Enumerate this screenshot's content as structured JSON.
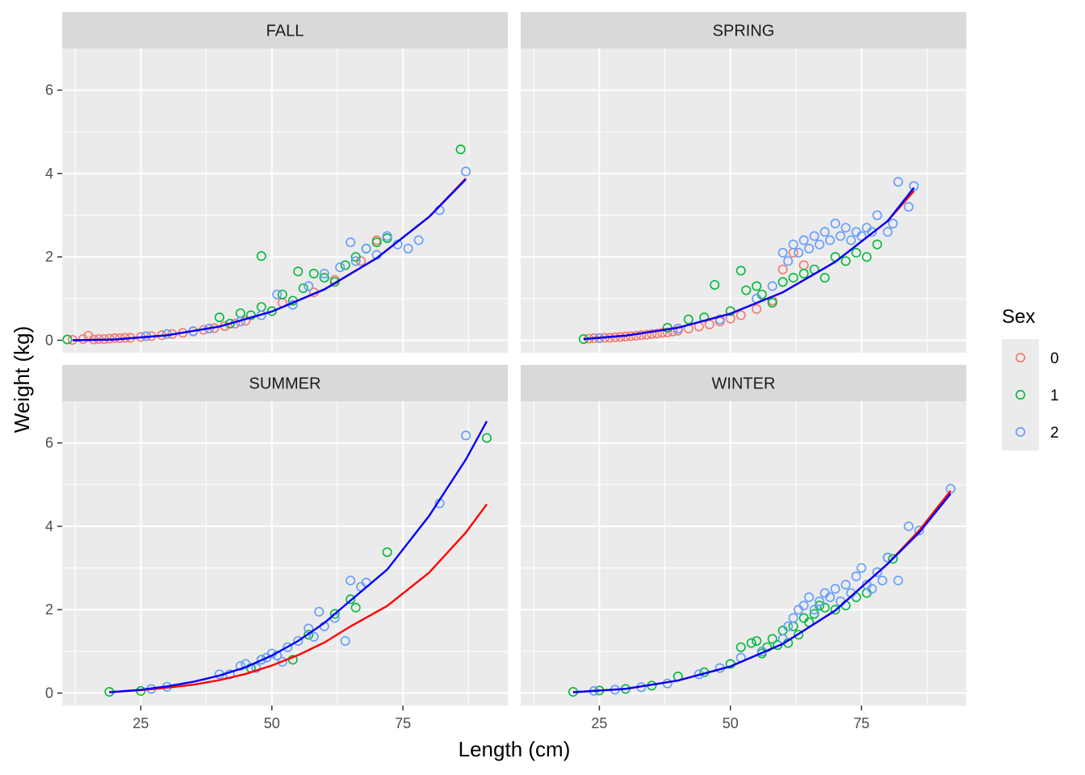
{
  "chart_data": {
    "type": "scatter",
    "layout": "facet_wrap 2x2, shared axes",
    "xlabel": "Length (cm)",
    "ylabel": "Weight (kg)",
    "xlim": [
      10,
      95
    ],
    "ylim": [
      -0.3,
      7
    ],
    "x_ticks": [
      25,
      50,
      75
    ],
    "y_ticks": [
      0,
      2,
      4,
      6
    ],
    "grid": true,
    "legend": {
      "title": "Sex",
      "position": "right",
      "entries": [
        "0",
        "1",
        "2"
      ]
    },
    "colors": {
      "sex_0": "#F8766D",
      "sex_1": "#00BA38",
      "sex_2": "#619CFF",
      "fit_red": "#FF0000",
      "fit_blue": "#0000FF",
      "panel_bg": "#EBEBEB",
      "strip_bg": "#D9D9D9"
    },
    "point_shape": "open-circle",
    "facets": [
      {
        "name": "FALL",
        "curves": [
          {
            "color": "red",
            "x": [
              12,
              20,
              30,
              40,
              50,
              60,
              70,
              80,
              87
            ],
            "y": [
              0.0,
              0.02,
              0.12,
              0.33,
              0.69,
              1.22,
              1.97,
              2.96,
              3.88
            ]
          },
          {
            "color": "blue",
            "x": [
              12,
              20,
              30,
              40,
              50,
              60,
              70,
              80,
              87
            ],
            "y": [
              0.0,
              0.02,
              0.12,
              0.33,
              0.69,
              1.22,
              1.97,
              2.96,
              3.86
            ]
          }
        ],
        "points": [
          {
            "sex": "0",
            "x": [
              12,
              14,
              15,
              16,
              17,
              18,
              19,
              20,
              21,
              22,
              23,
              25,
              27,
              29,
              31,
              33,
              35,
              37,
              39,
              41,
              43,
              45,
              52,
              58,
              62,
              67,
              70
            ],
            "y": [
              0.01,
              0.03,
              0.11,
              0.02,
              0.03,
              0.03,
              0.04,
              0.05,
              0.05,
              0.06,
              0.06,
              0.08,
              0.1,
              0.12,
              0.15,
              0.18,
              0.21,
              0.25,
              0.29,
              0.34,
              0.4,
              0.47,
              0.9,
              1.15,
              1.45,
              1.9,
              2.4
            ]
          },
          {
            "sex": "1",
            "x": [
              11,
              40,
              42,
              44,
              46,
              48,
              48,
              50,
              52,
              54,
              55,
              56,
              58,
              60,
              62,
              64,
              66,
              68,
              70,
              72,
              86
            ],
            "y": [
              0.02,
              0.55,
              0.4,
              0.65,
              0.6,
              2.02,
              0.8,
              0.7,
              1.1,
              0.95,
              1.65,
              1.25,
              1.6,
              1.5,
              1.4,
              1.8,
              2.0,
              2.2,
              2.35,
              2.45,
              4.58
            ]
          },
          {
            "sex": "2",
            "x": [
              26,
              30,
              35,
              38,
              44,
              48,
              51,
              54,
              57,
              60,
              63,
              65,
              66,
              68,
              70,
              72,
              74,
              76,
              78,
              82,
              87
            ],
            "y": [
              0.1,
              0.15,
              0.22,
              0.28,
              0.45,
              0.6,
              1.1,
              0.85,
              1.3,
              1.6,
              1.75,
              2.35,
              1.9,
              2.2,
              2.05,
              2.5,
              2.3,
              2.2,
              2.4,
              3.12,
              4.05
            ]
          }
        ]
      },
      {
        "name": "SPRING",
        "curves": [
          {
            "color": "red",
            "x": [
              22,
              30,
              40,
              50,
              60,
              70,
              80,
              85
            ],
            "y": [
              0.03,
              0.11,
              0.3,
              0.64,
              1.15,
              1.88,
              2.86,
              3.58
            ]
          },
          {
            "color": "blue",
            "x": [
              22,
              30,
              40,
              50,
              60,
              70,
              80,
              85
            ],
            "y": [
              0.03,
              0.11,
              0.3,
              0.64,
              1.15,
              1.88,
              2.86,
              3.66
            ]
          }
        ],
        "points": [
          {
            "sex": "0",
            "x": [
              23,
              24,
              25,
              26,
              27,
              28,
              29,
              30,
              31,
              32,
              33,
              34,
              35,
              36,
              37,
              38,
              39,
              40,
              42,
              44,
              46,
              48,
              50,
              52,
              55,
              58,
              60,
              62,
              64
            ],
            "y": [
              0.04,
              0.05,
              0.05,
              0.06,
              0.06,
              0.07,
              0.08,
              0.09,
              0.1,
              0.11,
              0.12,
              0.13,
              0.15,
              0.16,
              0.18,
              0.19,
              0.21,
              0.23,
              0.28,
              0.33,
              0.38,
              0.45,
              0.52,
              0.6,
              0.75,
              0.95,
              1.7,
              2.1,
              1.8
            ]
          },
          {
            "sex": "1",
            "x": [
              22,
              38,
              42,
              45,
              47,
              50,
              52,
              53,
              55,
              56,
              58,
              60,
              62,
              64,
              66,
              68,
              70,
              72,
              74,
              76,
              78
            ],
            "y": [
              0.03,
              0.3,
              0.5,
              0.55,
              1.33,
              0.7,
              1.67,
              1.2,
              1.3,
              1.1,
              0.9,
              1.4,
              1.5,
              1.6,
              1.7,
              1.5,
              2.0,
              1.9,
              2.1,
              2.0,
              2.3
            ]
          },
          {
            "sex": "2",
            "x": [
              25,
              40,
              48,
              55,
              58,
              60,
              61,
              62,
              63,
              64,
              65,
              66,
              67,
              68,
              69,
              70,
              71,
              72,
              73,
              74,
              75,
              76,
              77,
              78,
              80,
              81,
              82,
              84,
              85
            ],
            "y": [
              0.05,
              0.28,
              0.5,
              1.0,
              1.3,
              2.1,
              1.9,
              2.3,
              2.1,
              2.4,
              2.2,
              2.5,
              2.3,
              2.6,
              2.4,
              2.8,
              2.5,
              2.7,
              2.4,
              2.6,
              2.5,
              2.7,
              2.6,
              3.0,
              2.6,
              2.8,
              3.8,
              3.2,
              3.7
            ]
          }
        ]
      },
      {
        "name": "SUMMER",
        "curves": [
          {
            "color": "red",
            "x": [
              19,
              25,
              30,
              35,
              40,
              45,
              50,
              55,
              60,
              65,
              72,
              80,
              87,
              91
            ],
            "y": [
              0.02,
              0.07,
              0.13,
              0.2,
              0.31,
              0.46,
              0.66,
              0.91,
              1.21,
              1.6,
              2.09,
              2.89,
              3.85,
              4.53
            ]
          },
          {
            "color": "blue",
            "x": [
              19,
              25,
              30,
              35,
              40,
              45,
              50,
              55,
              60,
              65,
              72,
              80,
              87,
              91
            ],
            "y": [
              0.02,
              0.08,
              0.16,
              0.27,
              0.42,
              0.62,
              0.9,
              1.25,
              1.68,
              2.22,
              2.96,
              4.25,
              5.6,
              6.52
            ]
          }
        ],
        "points": [
          {
            "sex": "1",
            "x": [
              19,
              25,
              46,
              48,
              51,
              54,
              57,
              62,
              65,
              66,
              72,
              91
            ],
            "y": [
              0.03,
              0.05,
              0.6,
              0.8,
              0.9,
              0.8,
              1.4,
              1.9,
              2.25,
              2.05,
              3.38,
              6.12
            ]
          },
          {
            "sex": "2",
            "x": [
              27,
              30,
              40,
              42,
              44,
              45,
              47,
              48,
              49,
              50,
              51,
              52,
              53,
              55,
              57,
              58,
              59,
              60,
              62,
              64,
              65,
              67,
              68,
              82,
              87
            ],
            "y": [
              0.1,
              0.15,
              0.45,
              0.45,
              0.65,
              0.7,
              0.6,
              0.8,
              0.85,
              0.95,
              0.9,
              0.75,
              1.1,
              1.25,
              1.55,
              1.35,
              1.95,
              1.6,
              1.8,
              1.25,
              2.7,
              2.55,
              2.65,
              4.55,
              6.18
            ]
          }
        ]
      },
      {
        "name": "WINTER",
        "curves": [
          {
            "color": "red",
            "x": [
              20,
              30,
              40,
              50,
              60,
              70,
              80,
              86,
              92
            ],
            "y": [
              0.02,
              0.1,
              0.3,
              0.64,
              1.18,
              1.98,
              3.1,
              3.9,
              4.85
            ]
          },
          {
            "color": "blue",
            "x": [
              20,
              30,
              40,
              50,
              60,
              70,
              80,
              86,
              92
            ],
            "y": [
              0.02,
              0.1,
              0.3,
              0.64,
              1.18,
              1.98,
              3.1,
              3.85,
              4.78
            ]
          }
        ],
        "points": [
          {
            "sex": "1",
            "x": [
              20,
              25,
              30,
              35,
              40,
              45,
              50,
              52,
              54,
              55,
              56,
              57,
              58,
              59,
              60,
              61,
              62,
              63,
              64,
              65,
              66,
              67,
              68,
              70,
              72,
              74,
              76,
              80,
              81
            ],
            "y": [
              0.03,
              0.06,
              0.1,
              0.18,
              0.4,
              0.5,
              0.7,
              1.1,
              1.2,
              1.25,
              0.95,
              1.1,
              1.3,
              1.15,
              1.5,
              1.2,
              1.6,
              1.4,
              1.8,
              1.7,
              1.9,
              2.1,
              2.05,
              2.0,
              2.1,
              2.3,
              2.4,
              3.25,
              3.22
            ]
          },
          {
            "sex": "2",
            "x": [
              24,
              28,
              33,
              38,
              44,
              48,
              52,
              56,
              60,
              61,
              62,
              63,
              64,
              65,
              66,
              67,
              68,
              69,
              70,
              71,
              72,
              73,
              74,
              75,
              76,
              77,
              78,
              79,
              80,
              82,
              84,
              86,
              92
            ],
            "y": [
              0.05,
              0.08,
              0.14,
              0.23,
              0.45,
              0.6,
              0.85,
              1.0,
              1.3,
              1.6,
              1.8,
              2.0,
              2.1,
              2.3,
              2.0,
              2.2,
              2.4,
              2.3,
              2.5,
              2.2,
              2.6,
              2.4,
              2.8,
              3.0,
              2.6,
              2.5,
              2.9,
              2.7,
              3.25,
              2.7,
              4.0,
              3.9,
              4.9
            ]
          }
        ]
      }
    ]
  }
}
